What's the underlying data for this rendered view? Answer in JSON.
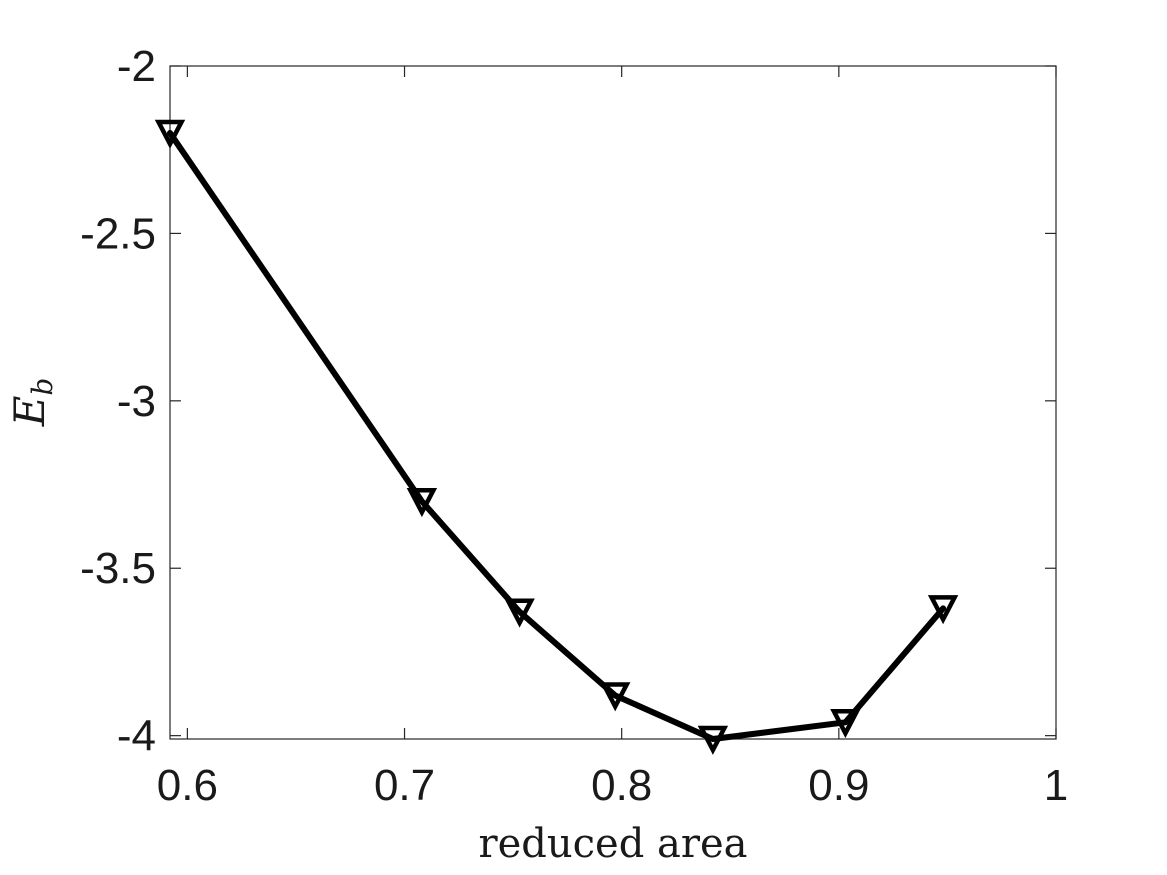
{
  "chart_data": {
    "type": "line",
    "title": "",
    "xlabel": "reduced area",
    "ylabel": "E",
    "ylabel_subscript": "b",
    "xlim": [
      0.592,
      1.0
    ],
    "ylim": [
      -4.01,
      -2.0
    ],
    "x_ticks": [
      0.6,
      0.7,
      0.8,
      0.9,
      1.0
    ],
    "x_tick_labels": [
      "0.6",
      "0.7",
      "0.8",
      "0.9",
      "1"
    ],
    "y_ticks": [
      -2.0,
      -2.5,
      -3.0,
      -3.5,
      -4.0
    ],
    "y_tick_labels": [
      "-2",
      "-2.5",
      "-3",
      "-3.5",
      "-4"
    ],
    "grid": false,
    "marker": "downward-triangle",
    "line_color": "#000000",
    "series": [
      {
        "x": [
          0.592,
          0.708,
          0.753,
          0.797,
          0.842,
          0.903,
          0.948
        ],
        "y": [
          -2.2,
          -3.3,
          -3.63,
          -3.88,
          -4.01,
          -3.96,
          -3.62
        ]
      }
    ]
  }
}
